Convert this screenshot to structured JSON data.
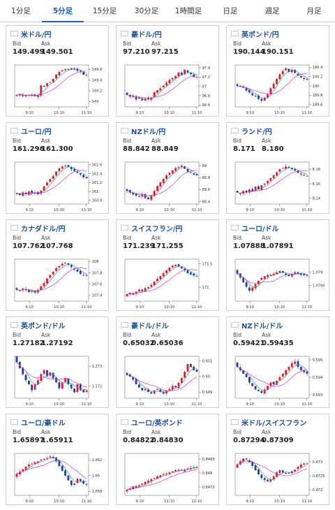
{
  "tabs": [
    {
      "label": "1分足",
      "active": false
    },
    {
      "label": "5分足",
      "active": true
    },
    {
      "label": "15分足",
      "active": false
    },
    {
      "label": "30分足",
      "active": false
    },
    {
      "label": "1時間足",
      "active": false
    },
    {
      "label": "日足",
      "active": false
    },
    {
      "label": "週足",
      "active": false
    },
    {
      "label": "月足",
      "active": false
    }
  ],
  "bid_label": "Bid",
  "ask_label": "Ask",
  "colors": {
    "up": "#e8141e",
    "down": "#1f3ba7",
    "ma_short": "#2a9aa8",
    "ma_long": "#d62ccf",
    "pair_text": "#1a4e9f",
    "tab_active": "#1a5fb4"
  },
  "cards": [
    {
      "pair": "米ドル/円",
      "flag": "us-flag-icon",
      "bid": "149.499",
      "ask": "149.501",
      "x_ticks": [
        "9:10",
        "10:10",
        "11:10"
      ],
      "y_ticks": [
        "149.6",
        "149.4",
        "149.2",
        "149"
      ],
      "ylim": [
        148.9,
        149.68
      ],
      "closes": [
        149.12,
        149.14,
        149.1,
        149.12,
        149.11,
        149.13,
        149.1,
        149.12,
        149.3,
        149.28,
        149.34,
        149.36,
        149.42,
        149.5,
        149.55,
        149.58,
        149.6,
        149.59,
        149.62,
        149.6,
        149.57,
        149.55,
        149.5,
        149.49
      ]
    },
    {
      "pair": "豪ドル/円",
      "flag": "au-flag-icon",
      "bid": "97.210",
      "ask": "97.215",
      "x_ticks": [
        "9:10",
        "10:10",
        "11:10"
      ],
      "y_ticks": [
        "97.4",
        "97.2",
        "97",
        "96.8",
        "96.6"
      ],
      "ylim": [
        96.56,
        97.46
      ],
      "closes": [
        96.82,
        96.78,
        96.8,
        96.72,
        96.75,
        96.7,
        96.74,
        96.72,
        96.76,
        96.88,
        96.92,
        96.96,
        97.02,
        97.08,
        97.14,
        97.18,
        97.22,
        97.3,
        97.25,
        97.36,
        97.3,
        97.26,
        97.2,
        97.21
      ]
    },
    {
      "pair": "英ポンド/円",
      "flag": "gb-flag-icon",
      "bid": "190.144",
      "ask": "190.151",
      "x_ticks": [
        "9:10",
        "10:10",
        "11:10"
      ],
      "y_ticks": [
        "190.4",
        "190.2",
        "190",
        "189.8",
        "189.6"
      ],
      "ylim": [
        189.55,
        190.45
      ],
      "closes": [
        190.0,
        189.98,
        189.96,
        189.9,
        189.86,
        189.8,
        189.78,
        189.72,
        189.68,
        189.75,
        189.82,
        189.95,
        190.05,
        190.15,
        190.25,
        190.32,
        190.38,
        190.3,
        190.35,
        190.28,
        190.22,
        190.18,
        190.15,
        190.14
      ]
    },
    {
      "pair": "ユーロ/円",
      "flag": "eu-flag-icon",
      "bid": "161.296",
      "ask": "161.300",
      "x_ticks": [
        "9:10",
        "10:10",
        "11:10"
      ],
      "y_ticks": [
        "161.6",
        "161.4",
        "161.2",
        "161",
        "160.8"
      ],
      "ylim": [
        160.72,
        161.66
      ],
      "closes": [
        160.95,
        160.92,
        160.98,
        160.94,
        161.0,
        160.96,
        160.98,
        160.94,
        161.02,
        161.12,
        161.2,
        161.28,
        161.35,
        161.45,
        161.52,
        161.56,
        161.58,
        161.55,
        161.5,
        161.46,
        161.42,
        161.38,
        161.32,
        161.3
      ]
    },
    {
      "pair": "NZドル/円",
      "flag": "nz-flag-icon",
      "bid": "88.842",
      "ask": "88.849",
      "x_ticks": [
        "9:10",
        "10:10",
        "11:10"
      ],
      "y_ticks": [
        "89",
        "88.8",
        "88.6",
        "88.4"
      ],
      "ylim": [
        88.36,
        89.06
      ],
      "closes": [
        88.58,
        88.55,
        88.52,
        88.5,
        88.48,
        88.52,
        88.46,
        88.44,
        88.5,
        88.58,
        88.66,
        88.72,
        88.78,
        88.84,
        88.88,
        88.92,
        88.96,
        88.98,
        89.0,
        88.95,
        88.9,
        88.88,
        88.85,
        88.84
      ]
    },
    {
      "pair": "ランド/円",
      "flag": "za-flag-icon",
      "bid": "8.171",
      "ask": "8.180",
      "x_ticks": [
        "9:10",
        "10:10",
        "11:10"
      ],
      "y_ticks": [
        "8.18",
        "8.16",
        "8.14"
      ],
      "ylim": [
        8.132,
        8.19
      ],
      "closes": [
        8.148,
        8.146,
        8.15,
        8.148,
        8.152,
        8.15,
        8.156,
        8.152,
        8.158,
        8.16,
        8.164,
        8.168,
        8.172,
        8.176,
        8.18,
        8.182,
        8.184,
        8.182,
        8.18,
        8.178,
        8.175,
        8.173,
        8.172,
        8.171
      ]
    },
    {
      "pair": "カナダドル/円",
      "flag": "ca-flag-icon",
      "bid": "107.762",
      "ask": "107.768",
      "x_ticks": [
        "9:10",
        "10:10",
        "11:10"
      ],
      "y_ticks": [
        "108",
        "107.8",
        "107.6",
        "107.4"
      ],
      "ylim": [
        107.3,
        108.04
      ],
      "closes": [
        107.5,
        107.48,
        107.52,
        107.5,
        107.46,
        107.48,
        107.45,
        107.5,
        107.56,
        107.62,
        107.7,
        107.76,
        107.82,
        107.88,
        107.92,
        107.96,
        107.98,
        107.94,
        107.9,
        107.86,
        107.82,
        107.78,
        107.77,
        107.76
      ]
    },
    {
      "pair": "スイスフラン/円",
      "flag": "ch-flag-icon",
      "bid": "171.239",
      "ask": "171.255",
      "x_ticks": [
        "9:10",
        "10:10",
        "11:10"
      ],
      "y_ticks": [
        "171.5",
        "171"
      ],
      "ylim": [
        170.7,
        171.6
      ],
      "closes": [
        170.85,
        170.88,
        170.84,
        170.9,
        170.95,
        170.92,
        170.98,
        171.0,
        171.05,
        171.12,
        171.18,
        171.24,
        171.3,
        171.36,
        171.42,
        171.46,
        171.48,
        171.44,
        171.4,
        171.36,
        171.3,
        171.27,
        171.25,
        171.24
      ]
    },
    {
      "pair": "ユーロ/ドル",
      "flag": "euus-flag-icon",
      "bid": "1.07888",
      "ask": "1.07891",
      "x_ticks": [
        "9:10",
        "10:10",
        "11:10"
      ],
      "y_ticks": [
        "1.079",
        "1.0785"
      ],
      "ylim": [
        1.0779,
        1.0795
      ],
      "closes": [
        1.07895,
        1.0788,
        1.07862,
        1.07845,
        1.0783,
        1.07842,
        1.07855,
        1.07868,
        1.07878,
        1.07885,
        1.0789,
        1.07888,
        1.07895,
        1.079,
        1.07905,
        1.07898,
        1.0789,
        1.07885,
        1.07893,
        1.079,
        1.07895,
        1.0789,
        1.07889,
        1.07888
      ]
    },
    {
      "pair": "英ポンド/ドル",
      "flag": "gbus-flag-icon",
      "bid": "1.27182",
      "ask": "1.27192",
      "x_ticks": [
        "9:10",
        "10:10",
        "11:10"
      ],
      "y_ticks": [
        "1.273",
        "1.272"
      ],
      "ylim": [
        1.2714,
        1.2735
      ],
      "closes": [
        1.2732,
        1.2729,
        1.2726,
        1.2723,
        1.2721,
        1.2718,
        1.2721,
        1.2723,
        1.2726,
        1.2728,
        1.2725,
        1.2727,
        1.2724,
        1.2722,
        1.2719,
        1.2722,
        1.2724,
        1.2721,
        1.2719,
        1.2717,
        1.2721,
        1.2718,
        1.2717,
        1.2718
      ]
    },
    {
      "pair": "豪ドル/ドル",
      "flag": "auus-flag-icon",
      "bid": "0.65032",
      "ask": "0.65036",
      "x_ticks": [
        "9:10",
        "10:10",
        "11:10"
      ],
      "y_ticks": [
        "0.651",
        "0.65",
        "0.649"
      ],
      "ylim": [
        0.6486,
        0.6513
      ],
      "closes": [
        0.6501,
        0.65,
        0.6498,
        0.6495,
        0.6493,
        0.6491,
        0.6492,
        0.649,
        0.6489,
        0.6491,
        0.6492,
        0.649,
        0.6489,
        0.6491,
        0.6492,
        0.6494,
        0.6493,
        0.6496,
        0.6499,
        0.6503,
        0.6508,
        0.6506,
        0.6504,
        0.6503
      ]
    },
    {
      "pair": "NZドル/ドル",
      "flag": "nzus-flag-icon",
      "bid": "0.59421",
      "ask": "0.59435",
      "x_ticks": [
        "9:10",
        "10:10",
        "11:10"
      ],
      "y_ticks": [
        "0.595",
        "0.594",
        "0.593"
      ],
      "ylim": [
        0.5928,
        0.5952
      ],
      "closes": [
        0.5946,
        0.5944,
        0.5942,
        0.594,
        0.5937,
        0.5935,
        0.5933,
        0.5932,
        0.5931,
        0.5933,
        0.5935,
        0.5937,
        0.5936,
        0.5938,
        0.594,
        0.5942,
        0.5944,
        0.5946,
        0.5948,
        0.5949,
        0.5946,
        0.5944,
        0.5943,
        0.5942
      ]
    },
    {
      "pair": "ユーロ/豪ドル",
      "flag": "euau-flag-icon",
      "bid": "1.65897",
      "ask": "1.65911",
      "x_ticks": [
        "9:10",
        "10:10",
        "11:10"
      ],
      "y_ticks": [
        "1.662",
        "1.66",
        "1.658"
      ],
      "ylim": [
        1.6575,
        1.6628
      ],
      "closes": [
        1.6602,
        1.6605,
        1.6608,
        1.6611,
        1.6614,
        1.6615,
        1.6617,
        1.6618,
        1.662,
        1.6621,
        1.6622,
        1.6624,
        1.6622,
        1.6618,
        1.6612,
        1.6606,
        1.66,
        1.6594,
        1.6588,
        1.659,
        1.6596,
        1.6593,
        1.659,
        1.6589
      ]
    },
    {
      "pair": "ユーロ/英ポンド",
      "flag": "eugb-flag-icon",
      "bid": "0.84822",
      "ask": "0.84830",
      "x_ticks": [
        "9:10",
        "10:10",
        "11:10"
      ],
      "y_ticks": [
        "0.8485",
        "0.848",
        "0.8475"
      ],
      "ylim": [
        0.8472,
        0.8487
      ],
      "closes": [
        0.8474,
        0.84745,
        0.84752,
        0.84748,
        0.84756,
        0.84762,
        0.84768,
        0.84772,
        0.84778,
        0.84782,
        0.84788,
        0.84792,
        0.84796,
        0.84798,
        0.84802,
        0.84806,
        0.8481,
        0.84812,
        0.84808,
        0.84812,
        0.84816,
        0.84818,
        0.8482,
        0.84822
      ]
    },
    {
      "pair": "米ドル/スイスフラン",
      "flag": "usch-flag-icon",
      "bid": "0.87294",
      "ask": "0.87309",
      "x_ticks": [
        "9:10",
        "10:10",
        "11:10"
      ],
      "y_ticks": [
        "0.873",
        "0.8725",
        "0.872"
      ],
      "ylim": [
        0.8718,
        0.8733
      ],
      "closes": [
        0.8729,
        0.87302,
        0.87312,
        0.87308,
        0.87298,
        0.87285,
        0.8727,
        0.87255,
        0.87242,
        0.87235,
        0.8723,
        0.87238,
        0.87248,
        0.87262,
        0.8727,
        0.87262,
        0.87258,
        0.8726,
        0.87266,
        0.87272,
        0.87282,
        0.8729,
        0.87294,
        0.87294
      ]
    }
  ]
}
